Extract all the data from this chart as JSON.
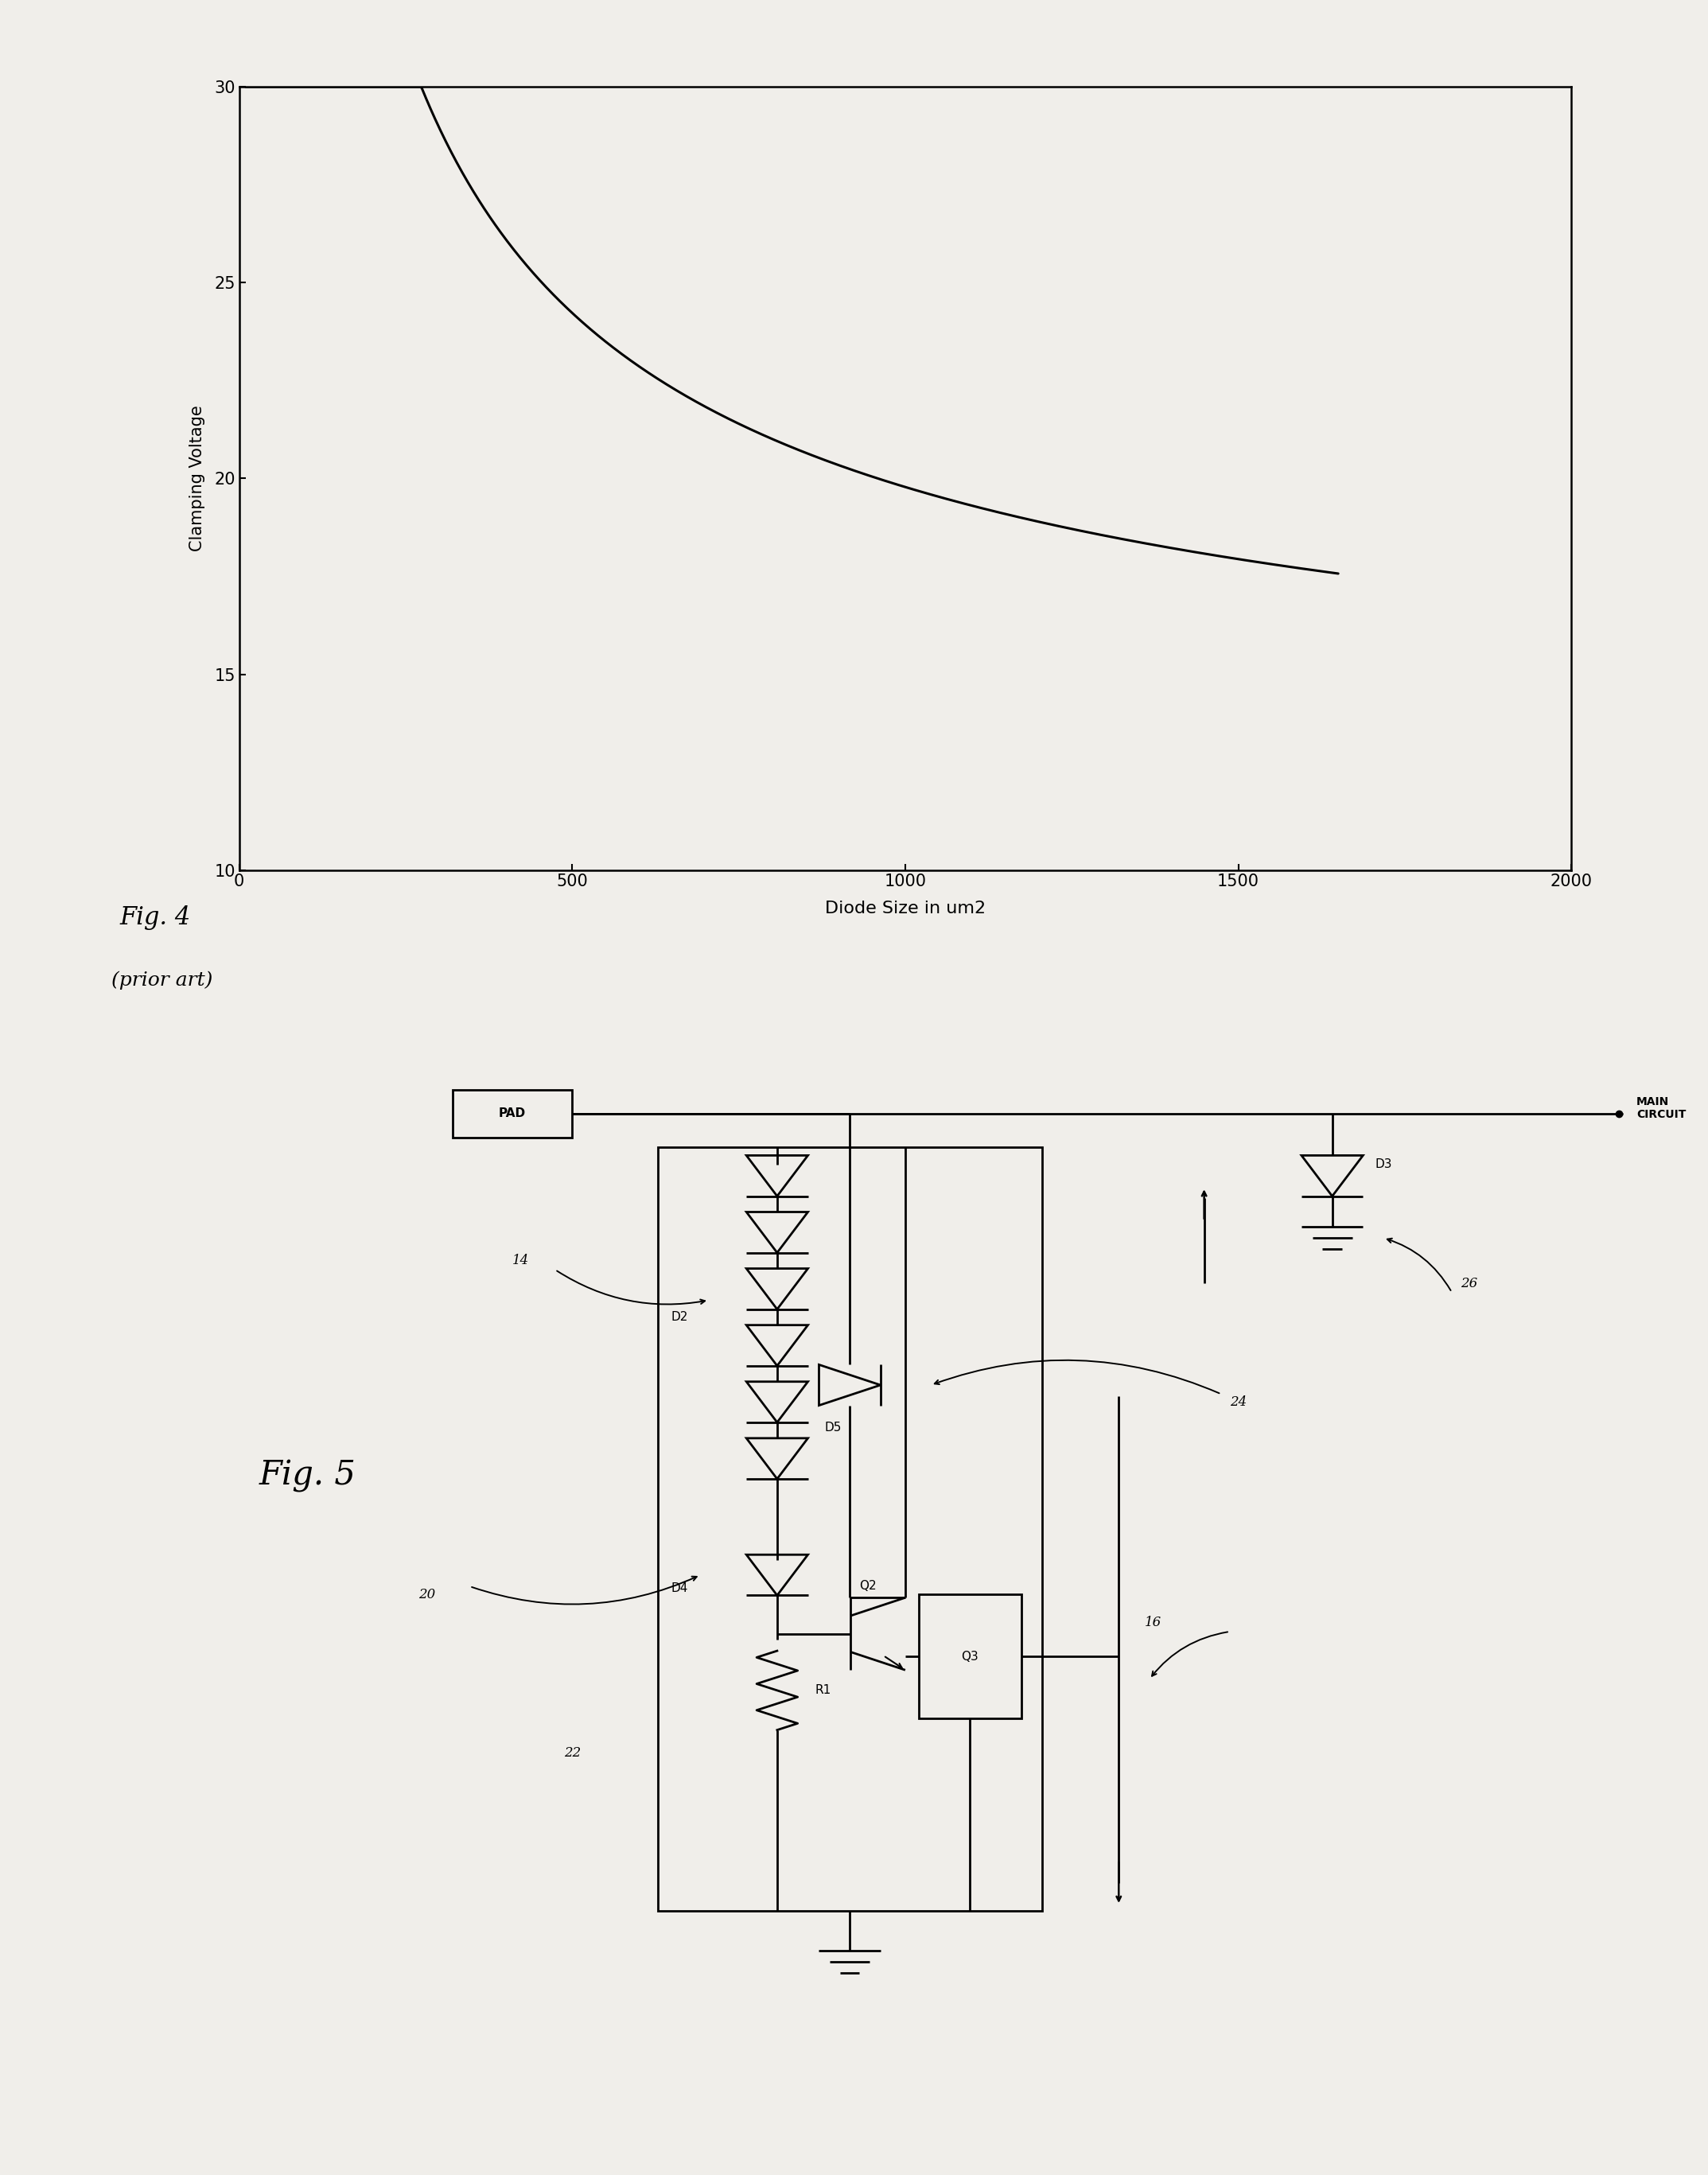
{
  "fig4": {
    "xlabel": "Diode Size in um2",
    "ylabel": "Clamping Voltage",
    "xlim": [
      0,
      2000
    ],
    "ylim": [
      10,
      30
    ],
    "yticks": [
      10,
      15,
      20,
      25,
      30
    ],
    "xticks": [
      0,
      500,
      1000,
      1500,
      2000
    ]
  },
  "page_bg": "#f0eeea",
  "fig4_label": "Fig. 4",
  "fig4_sublabel": "(prior art)",
  "fig5_label": "Fig. 5"
}
